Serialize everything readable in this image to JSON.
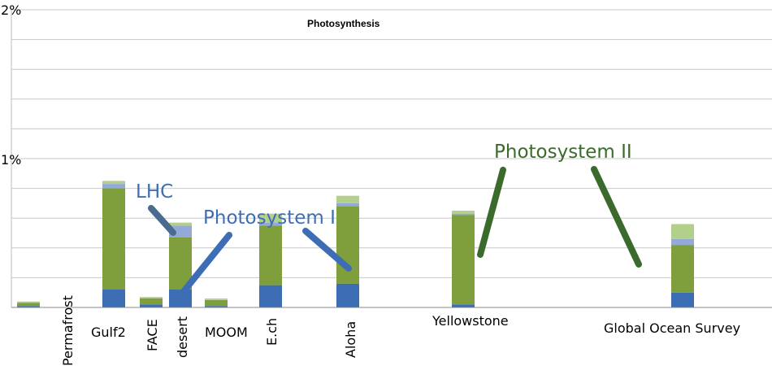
{
  "chart_data": {
    "type": "bar",
    "stacked": true,
    "title": "Photosynthesis",
    "ylim": [
      0,
      2
    ],
    "y_ticks": [
      "2%",
      "1%"
    ],
    "grid": true,
    "categories": [
      "Permafrost",
      "Gulf2",
      "FACE",
      "desert",
      "MOOM",
      "E.ch",
      "Aloha",
      "Yellowstone",
      "Global Ocean Survey"
    ],
    "series": [
      {
        "name": "Photosystem I",
        "color": "#3d6db5",
        "values": [
          0.01,
          0.12,
          0.02,
          0.12,
          0.01,
          0.15,
          0.16,
          0.02,
          0.1
        ]
      },
      {
        "name": "Photosystem II",
        "color": "#7f9f3d",
        "values": [
          0.02,
          0.68,
          0.04,
          0.35,
          0.04,
          0.4,
          0.52,
          0.6,
          0.32
        ]
      },
      {
        "name": "LHC",
        "color": "#93a9d6",
        "values": [
          0.0,
          0.03,
          0.0,
          0.08,
          0.0,
          0.02,
          0.02,
          0.01,
          0.04
        ]
      },
      {
        "name": "",
        "color": "#b3cf8c",
        "values": [
          0.01,
          0.02,
          0.01,
          0.02,
          0.01,
          0.06,
          0.05,
          0.02,
          0.1
        ]
      }
    ],
    "group_values_note": "",
    "annotations": [
      {
        "text": "LHC",
        "color": "#3d6db5"
      },
      {
        "text": "Photosystem I",
        "color": "#3d6db5"
      },
      {
        "text": "Photosystem II",
        "color": "#3a6b2c"
      }
    ]
  }
}
